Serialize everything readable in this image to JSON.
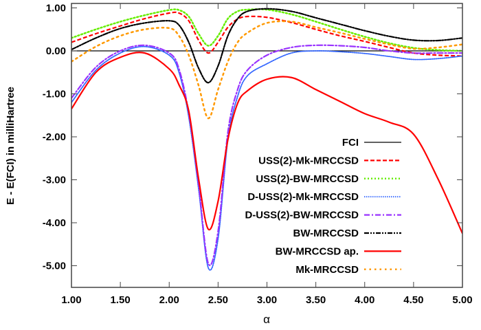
{
  "chart_data": {
    "type": "line",
    "title": "",
    "xlabel": "α",
    "ylabel": "E - E(FCI) in milliHartree",
    "xlim": [
      1.0,
      5.0
    ],
    "ylim": [
      -5.5,
      1.1
    ],
    "xticks": [
      "1.00",
      "1.50",
      "2.00",
      "2.50",
      "3.00",
      "3.50",
      "4.00",
      "4.50",
      "5.00"
    ],
    "yticks": [
      "1.00",
      "0.00",
      "-1.00",
      "-2.00",
      "-3.00",
      "-4.00",
      "-5.00"
    ],
    "grid": false,
    "legend_position": "bottom-right",
    "x": [
      1.0,
      1.25,
      1.5,
      1.75,
      2.0,
      2.1,
      2.2,
      2.3,
      2.4,
      2.5,
      2.6,
      2.7,
      2.8,
      3.0,
      3.25,
      3.5,
      3.75,
      4.0,
      4.25,
      4.5,
      4.75,
      5.0
    ],
    "series": [
      {
        "name": "FCI",
        "color": "#000000",
        "style": "solid",
        "values": [
          0,
          0,
          0,
          0,
          0,
          0,
          0,
          0,
          0,
          0,
          0,
          0,
          0,
          0,
          0,
          0,
          0,
          0,
          0,
          0,
          0,
          0
        ]
      },
      {
        "name": "USS(2)-Mk-MRCCSD",
        "color": "#ff0000",
        "style": "dashed",
        "values": [
          0.2,
          0.4,
          0.58,
          0.75,
          0.88,
          0.88,
          0.7,
          0.25,
          -0.05,
          0.2,
          0.55,
          0.74,
          0.8,
          0.78,
          0.66,
          0.5,
          0.35,
          0.22,
          0.08,
          -0.05,
          -0.1,
          -0.12
        ]
      },
      {
        "name": "USS(2)-BW-MRCCSD",
        "color": "#66ee00",
        "style": "dotted",
        "values": [
          0.3,
          0.5,
          0.68,
          0.83,
          0.95,
          0.95,
          0.8,
          0.4,
          0.12,
          0.35,
          0.75,
          0.92,
          0.96,
          0.96,
          0.85,
          0.68,
          0.5,
          0.33,
          0.18,
          0.07,
          0.02,
          0.0
        ]
      },
      {
        "name": "D-USS(2)-Mk-MRCCSD",
        "color": "#3366ff",
        "style": "finedotted",
        "values": [
          -1.2,
          -0.45,
          -0.05,
          0.1,
          -0.1,
          -0.5,
          -1.54,
          -3.2,
          -5.05,
          -4.37,
          -2.07,
          -1.06,
          -0.58,
          -0.3,
          -0.05,
          0.0,
          -0.02,
          -0.06,
          -0.13,
          -0.2,
          -0.18,
          -0.12
        ]
      },
      {
        "name": "D-USS(2)-BW-MRCCSD",
        "color": "#9933ff",
        "style": "dashdot",
        "values": [
          -1.1,
          -0.38,
          0.0,
          0.13,
          -0.05,
          -0.42,
          -1.45,
          -3.1,
          -4.95,
          -4.2,
          -1.9,
          -0.9,
          -0.45,
          -0.1,
          0.08,
          0.13,
          0.12,
          0.08,
          0.0,
          -0.05,
          -0.05,
          -0.05
        ]
      },
      {
        "name": "BW-MRCCSD",
        "color": "#000000",
        "style": "dashdotdot",
        "values": [
          0.03,
          0.3,
          0.52,
          0.65,
          0.7,
          0.6,
          0.2,
          -0.4,
          -0.74,
          -0.35,
          0.35,
          0.75,
          0.92,
          0.98,
          0.92,
          0.77,
          0.62,
          0.47,
          0.34,
          0.25,
          0.24,
          0.3
        ]
      },
      {
        "name": "BW-MRCCSD ap.",
        "color": "#ff0000",
        "style": "solid",
        "values": [
          -1.35,
          -0.5,
          -0.15,
          -0.05,
          -0.42,
          -0.79,
          -1.4,
          -2.97,
          -4.15,
          -3.5,
          -2.07,
          -1.22,
          -0.93,
          -0.66,
          -0.62,
          -0.9,
          -1.18,
          -1.46,
          -1.66,
          -1.94,
          -2.98,
          -4.25
        ]
      },
      {
        "name": "Mk-MRCCSD",
        "color": "#ff9900",
        "style": "sparsedotted",
        "values": [
          -0.25,
          0.1,
          0.35,
          0.5,
          0.53,
          0.35,
          -0.1,
          -0.8,
          -1.57,
          -0.9,
          -0.25,
          0.2,
          0.42,
          0.65,
          0.68,
          0.55,
          0.42,
          0.28,
          0.15,
          0.05,
          0.08,
          0.15
        ]
      }
    ]
  }
}
